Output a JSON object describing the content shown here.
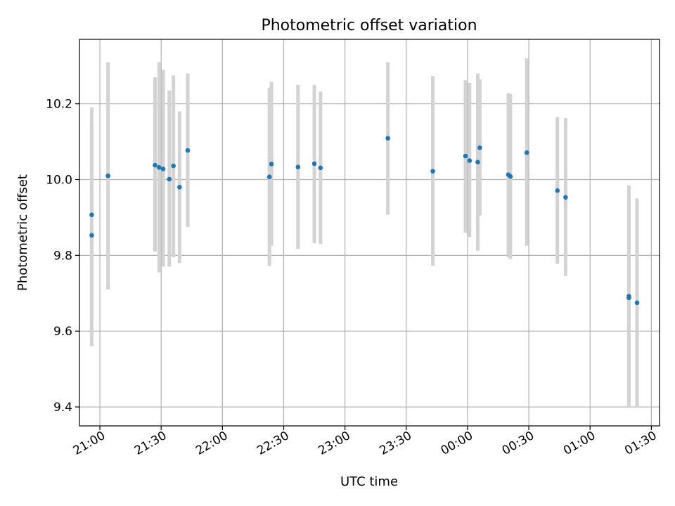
{
  "chart_data": {
    "type": "scatter",
    "title": "Photometric offset variation",
    "xlabel": "UTC time",
    "ylabel": "Photometric offset",
    "x_ticks": [
      "21:00",
      "21:30",
      "22:00",
      "22:30",
      "23:00",
      "23:30",
      "00:00",
      "00:30",
      "01:00",
      "01:30"
    ],
    "y_ticks": [
      "9.4",
      "9.6",
      "9.8",
      "10.0",
      "10.2"
    ],
    "xlim": [
      "20:50",
      "01:34"
    ],
    "ylim": [
      9.35,
      10.37
    ],
    "grid": true,
    "error_bars": true,
    "marker_color": "#1f77b4",
    "errorbar_color": "#d3d3d3",
    "points": [
      {
        "x": "20:56",
        "y": 9.853,
        "ylo": 9.56,
        "yhi": 10.15
      },
      {
        "x": "20:56",
        "y": 9.907,
        "ylo": 9.62,
        "yhi": 10.19
      },
      {
        "x": "21:04",
        "y": 10.01,
        "ylo": 9.71,
        "yhi": 10.31
      },
      {
        "x": "21:27",
        "y": 10.038,
        "ylo": 9.81,
        "yhi": 10.27
      },
      {
        "x": "21:29",
        "y": 10.032,
        "ylo": 9.755,
        "yhi": 10.31
      },
      {
        "x": "21:31",
        "y": 10.028,
        "ylo": 9.77,
        "yhi": 10.29
      },
      {
        "x": "21:34",
        "y": 10.001,
        "ylo": 9.77,
        "yhi": 10.235
      },
      {
        "x": "21:36",
        "y": 10.036,
        "ylo": 9.795,
        "yhi": 10.275
      },
      {
        "x": "21:39",
        "y": 9.98,
        "ylo": 9.78,
        "yhi": 10.18
      },
      {
        "x": "21:43",
        "y": 10.077,
        "ylo": 9.875,
        "yhi": 10.28
      },
      {
        "x": "22:23",
        "y": 10.007,
        "ylo": 9.772,
        "yhi": 10.242
      },
      {
        "x": "22:24",
        "y": 10.041,
        "ylo": 9.825,
        "yhi": 10.258
      },
      {
        "x": "22:37",
        "y": 10.033,
        "ylo": 9.817,
        "yhi": 10.25
      },
      {
        "x": "22:45",
        "y": 10.042,
        "ylo": 9.832,
        "yhi": 10.25
      },
      {
        "x": "22:48",
        "y": 10.031,
        "ylo": 9.83,
        "yhi": 10.232
      },
      {
        "x": "23:21",
        "y": 10.109,
        "ylo": 9.907,
        "yhi": 10.31
      },
      {
        "x": "23:43",
        "y": 10.022,
        "ylo": 9.772,
        "yhi": 10.273
      },
      {
        "x": "23:59",
        "y": 10.062,
        "ylo": 9.86,
        "yhi": 10.262
      },
      {
        "x": "00:01",
        "y": 10.05,
        "ylo": 9.848,
        "yhi": 10.255
      },
      {
        "x": "00:05",
        "y": 10.046,
        "ylo": 9.812,
        "yhi": 10.28
      },
      {
        "x": "00:06",
        "y": 10.084,
        "ylo": 9.905,
        "yhi": 10.265
      },
      {
        "x": "00:20",
        "y": 10.013,
        "ylo": 9.795,
        "yhi": 10.228
      },
      {
        "x": "00:21",
        "y": 10.008,
        "ylo": 9.79,
        "yhi": 10.225
      },
      {
        "x": "00:29",
        "y": 10.071,
        "ylo": 9.825,
        "yhi": 10.32
      },
      {
        "x": "00:44",
        "y": 9.971,
        "ylo": 9.778,
        "yhi": 10.165
      },
      {
        "x": "00:48",
        "y": 9.953,
        "ylo": 9.745,
        "yhi": 10.162
      },
      {
        "x": "01:19",
        "y": 9.692,
        "ylo": 9.41,
        "yhi": 9.985
      },
      {
        "x": "01:19",
        "y": 9.688,
        "ylo": 9.4,
        "yhi": 9.97
      },
      {
        "x": "01:23",
        "y": 9.675,
        "ylo": 9.4,
        "yhi": 9.95
      }
    ]
  }
}
